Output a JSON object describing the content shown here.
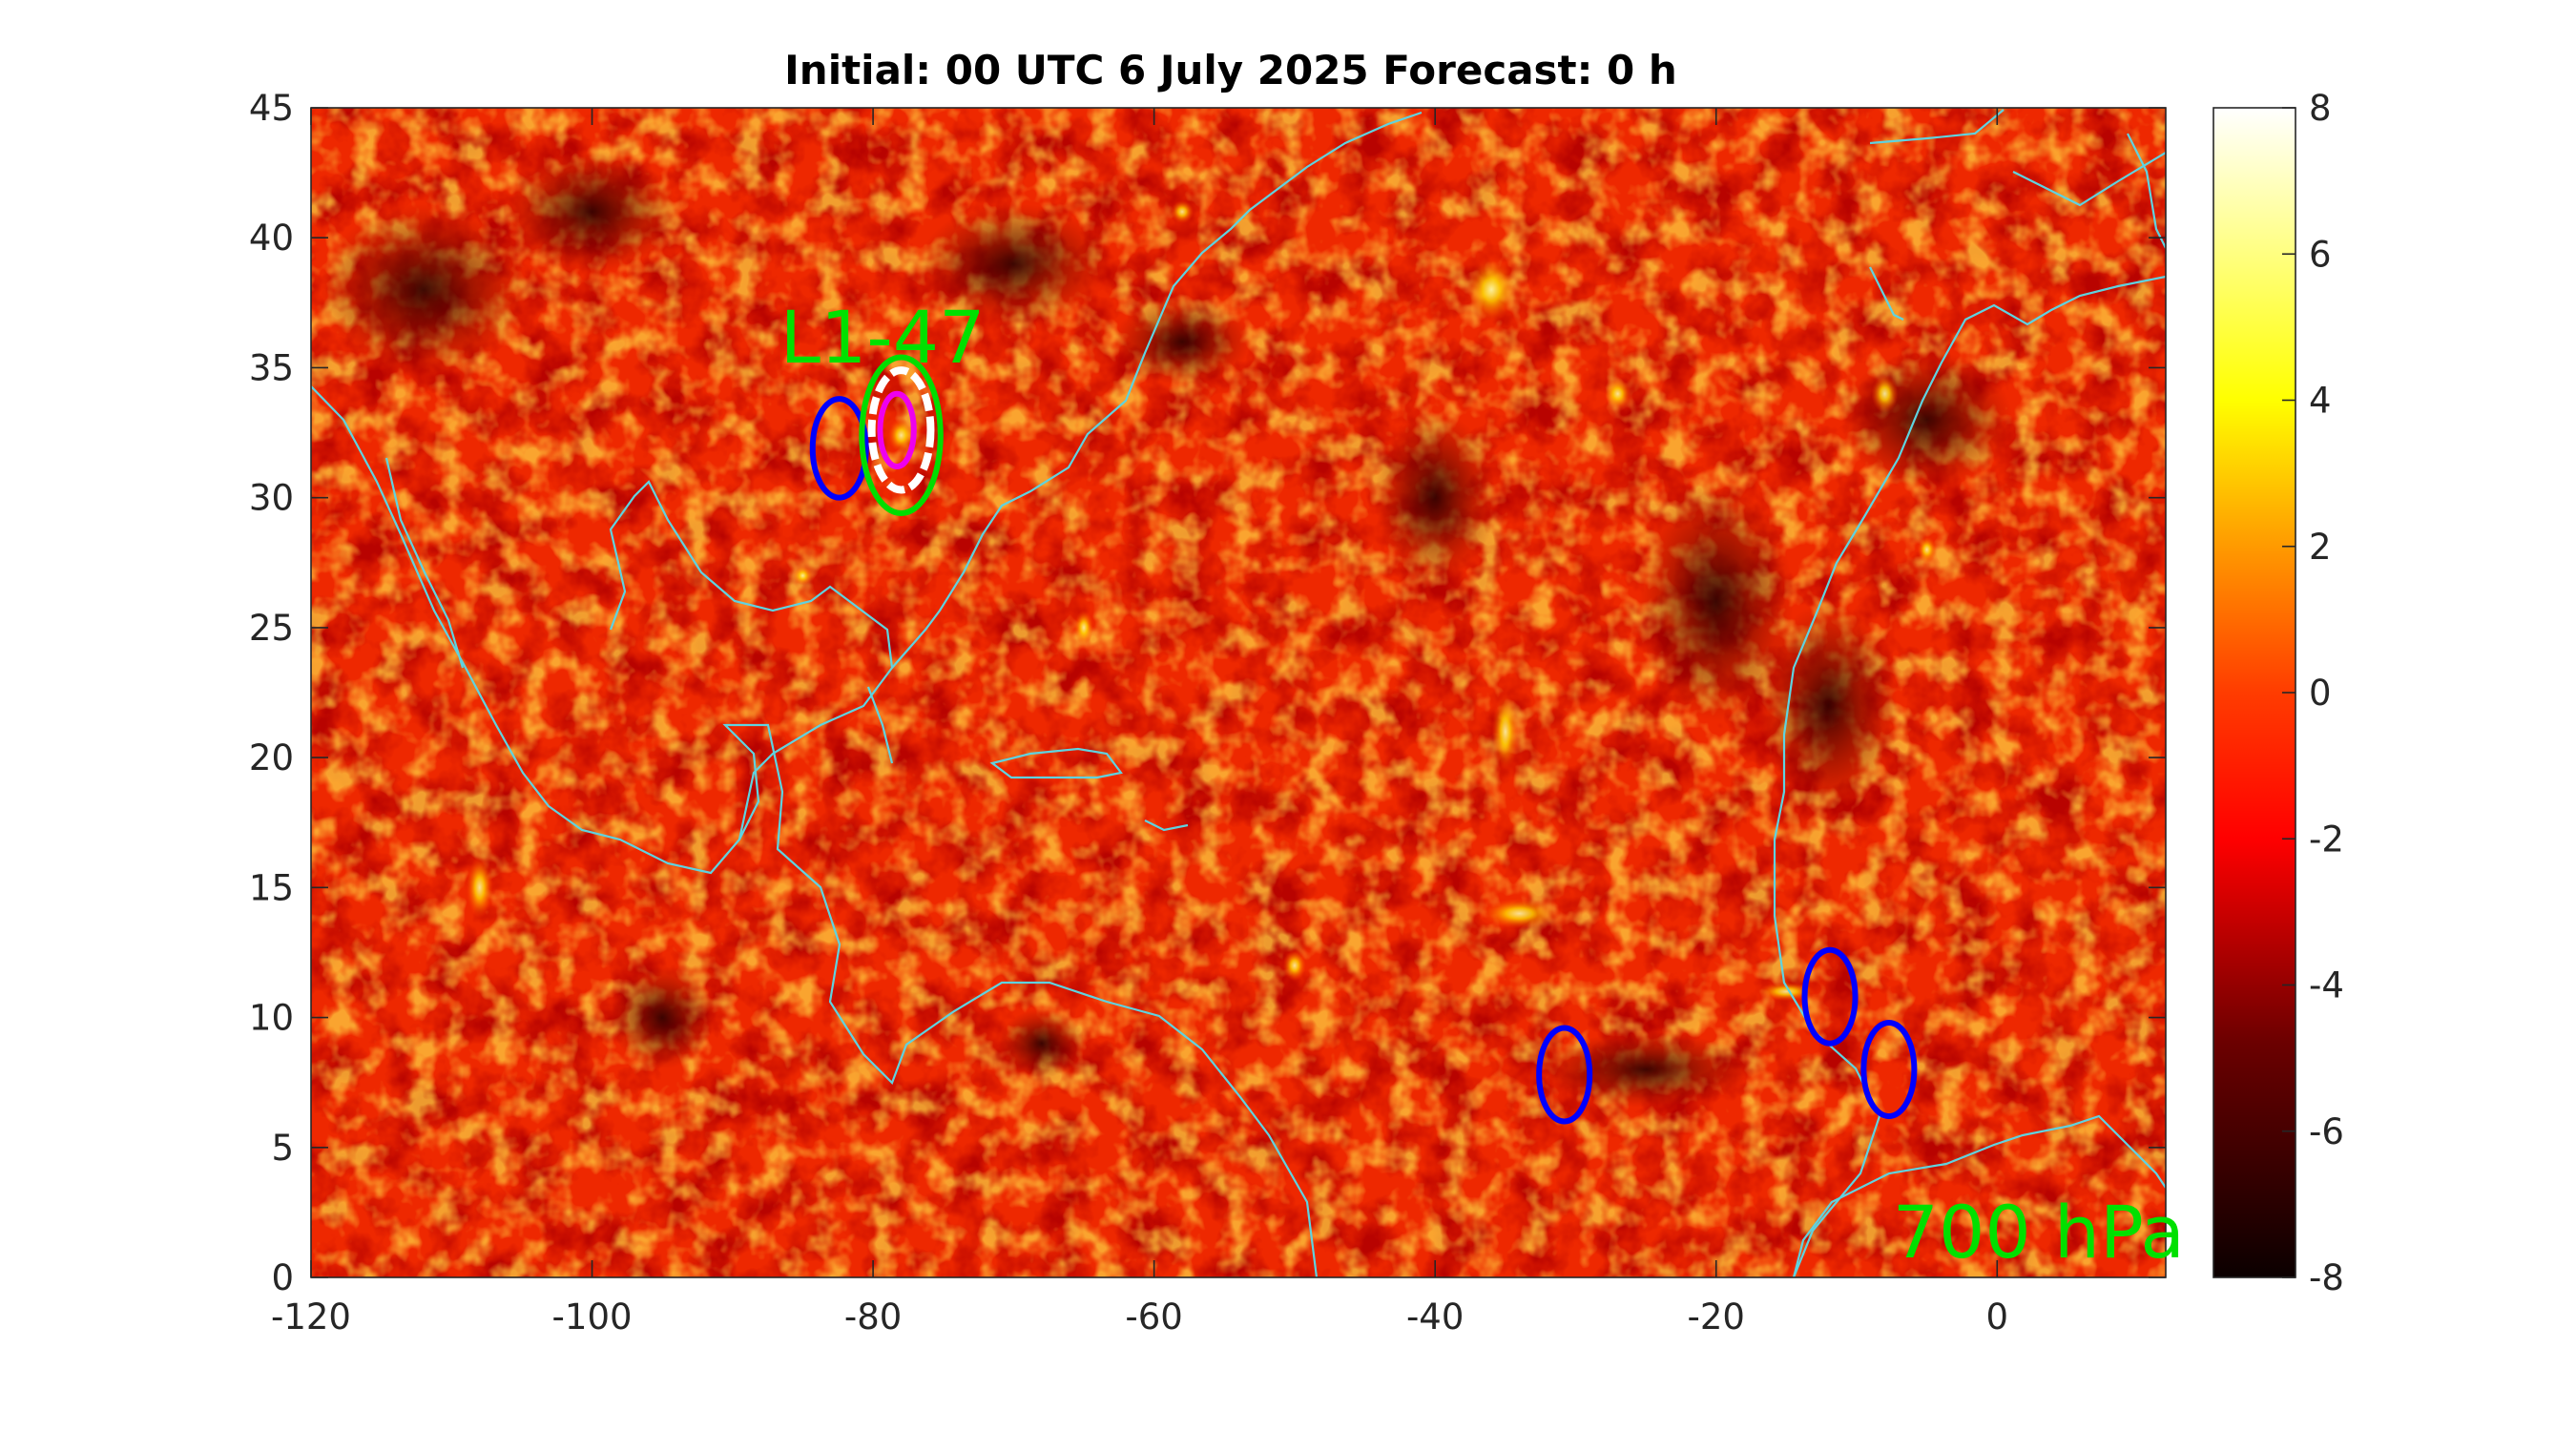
{
  "title": "Initial: 00 UTC 6 July 2025 Forecast: 0 h",
  "colors": {
    "coastline": "#5fd3e0",
    "system_label": "#00e000",
    "level_label": "#00e000",
    "circle_blue": "#0000ff",
    "circle_green": "#00dd00",
    "circle_magenta": "#ee00ee",
    "circle_white": "#ffffff"
  },
  "chart_data": {
    "type": "heatmap",
    "title": "Initial: 00 UTC 6 July 2025 Forecast: 0 h",
    "xlabel": "",
    "ylabel": "",
    "xlim": [
      -120,
      12
    ],
    "ylim": [
      0,
      45
    ],
    "x_ticks": [
      -120,
      -100,
      -80,
      -60,
      -40,
      -20,
      0
    ],
    "x_tick_labels": [
      "-120",
      "-100",
      "-80",
      "-60",
      "-40",
      "-20",
      "0"
    ],
    "y_ticks": [
      0,
      5,
      10,
      15,
      20,
      25,
      30,
      35,
      40,
      45
    ],
    "y_tick_labels": [
      "0",
      "5",
      "10",
      "15",
      "20",
      "25",
      "30",
      "35",
      "40",
      "45"
    ],
    "colorbar": {
      "colormap": "hot",
      "clim": [
        -8,
        8
      ],
      "ticks": [
        -8,
        -6,
        -4,
        -2,
        0,
        2,
        4,
        6,
        8
      ],
      "tick_labels": [
        "-8",
        "-6",
        "-4",
        "-2",
        "0",
        "2",
        "4",
        "6",
        "8"
      ]
    },
    "annotations": {
      "system_label": {
        "text": "L1-47",
        "lon": -80,
        "lat": 36
      },
      "level_label": {
        "text": "700 hPa"
      }
    },
    "markers": [
      {
        "name": "blue-ellipse-1",
        "color": "blue",
        "lon": -82.4,
        "lat": 31.9,
        "rx_deg": 1.9,
        "ry_deg": 1.9
      },
      {
        "name": "green-ellipse",
        "color": "green",
        "lon": -78.0,
        "lat": 32.4,
        "rx_deg": 2.8,
        "ry_deg": 3.0
      },
      {
        "name": "white-ellipse",
        "color": "white",
        "lon": -78.0,
        "lat": 32.6,
        "rx_deg": 2.1,
        "ry_deg": 2.3
      },
      {
        "name": "magenta-ellipse",
        "color": "magenta",
        "lon": -78.3,
        "lat": 32.6,
        "rx_deg": 1.2,
        "ry_deg": 1.4
      },
      {
        "name": "blue-ellipse-2",
        "color": "blue",
        "lon": -30.8,
        "lat": 7.8,
        "rx_deg": 1.8,
        "ry_deg": 1.8
      },
      {
        "name": "blue-ellipse-3",
        "color": "blue",
        "lon": -11.9,
        "lat": 10.8,
        "rx_deg": 1.8,
        "ry_deg": 1.8
      },
      {
        "name": "blue-ellipse-4",
        "color": "blue",
        "lon": -7.7,
        "lat": 8.0,
        "rx_deg": 1.8,
        "ry_deg": 1.8
      }
    ]
  }
}
